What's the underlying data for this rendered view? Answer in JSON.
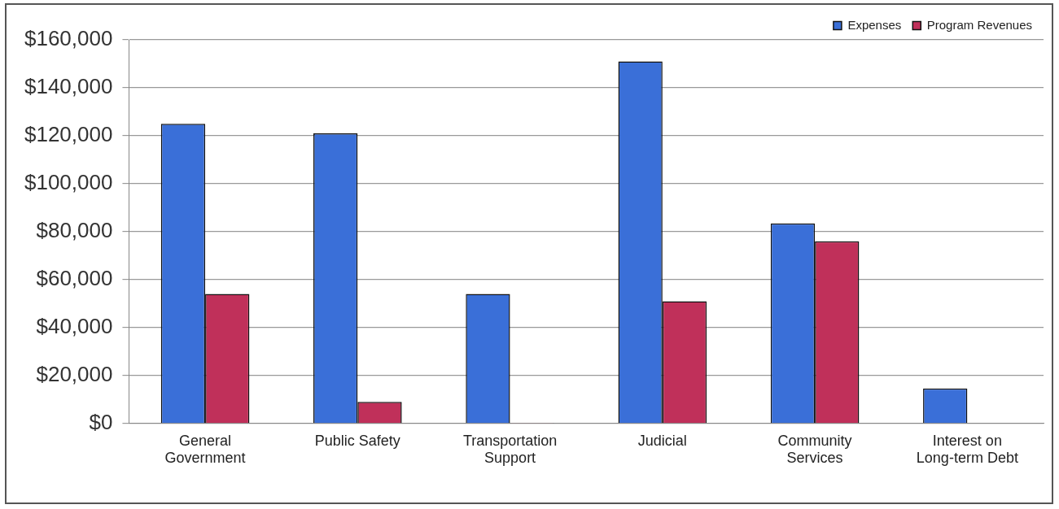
{
  "chart_data": {
    "type": "bar",
    "categories": [
      "General Government",
      "Public Safety",
      "Transportation Support",
      "Judicial",
      "Community Services",
      "Interest on Long-term Debt"
    ],
    "series": [
      {
        "name": "Expenses",
        "color": "#3a6fd8",
        "values": [
          125000,
          121000,
          54000,
          151000,
          83400,
          14600
        ]
      },
      {
        "name": "Program Revenues",
        "color": "#c0305a",
        "values": [
          54000,
          9000,
          300,
          51000,
          76000,
          null
        ]
      }
    ],
    "ylim": [
      0,
      160000
    ],
    "yticks": [
      {
        "value": 0,
        "label": "$0"
      },
      {
        "value": 20000,
        "label": "$20,000"
      },
      {
        "value": 40000,
        "label": "$40,000"
      },
      {
        "value": 60000,
        "label": "$60,000"
      },
      {
        "value": 80000,
        "label": "$80,000"
      },
      {
        "value": 100000,
        "label": "$100,000"
      },
      {
        "value": 120000,
        "label": "$120,000"
      },
      {
        "value": 140000,
        "label": "$140,000"
      },
      {
        "value": 160000,
        "label": "$160,000"
      }
    ],
    "grid": "y",
    "legend": "top right"
  }
}
